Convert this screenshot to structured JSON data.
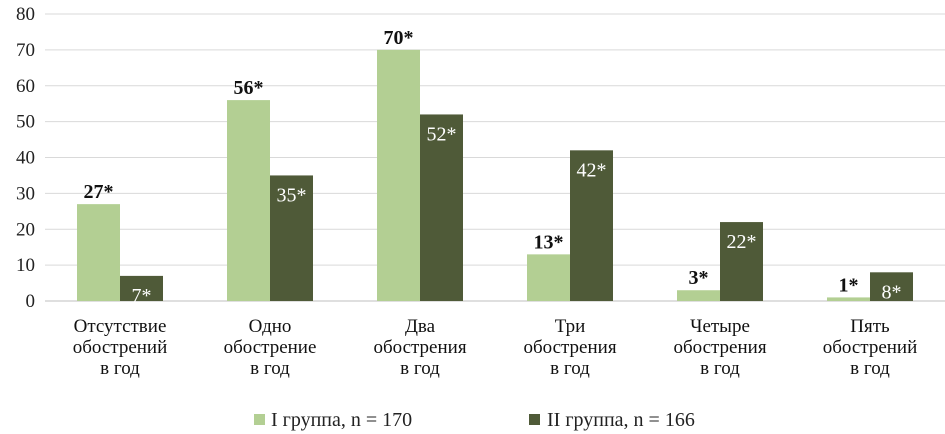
{
  "chart_data": {
    "type": "bar",
    "categories": [
      [
        "Отсутствие",
        "обострений",
        "в год"
      ],
      [
        "Одно",
        "обострение",
        "в год"
      ],
      [
        "Два",
        "обострения",
        "в год"
      ],
      [
        "Три",
        "обострения",
        "в год"
      ],
      [
        "Четыре",
        "обострения",
        "в год"
      ],
      [
        "Пять",
        "обострений",
        "в год"
      ]
    ],
    "series": [
      {
        "name": "I группа, n = 170",
        "color": "#b3cf93",
        "values": [
          27,
          56,
          70,
          13,
          3,
          1
        ],
        "labels": [
          "27*",
          "56*",
          "70*",
          "13*",
          "3*",
          "1*"
        ]
      },
      {
        "name": "II группа, n = 166",
        "color": "#4f5a38",
        "values": [
          7,
          35,
          52,
          42,
          22,
          8
        ],
        "labels": [
          "7*",
          "35*",
          "52*",
          "42*",
          "22*",
          "8*"
        ]
      }
    ],
    "ylim": [
      0,
      80
    ],
    "yticks": [
      0,
      10,
      20,
      30,
      40,
      50,
      60,
      70,
      80
    ],
    "grid": true,
    "legend": "bottom"
  }
}
